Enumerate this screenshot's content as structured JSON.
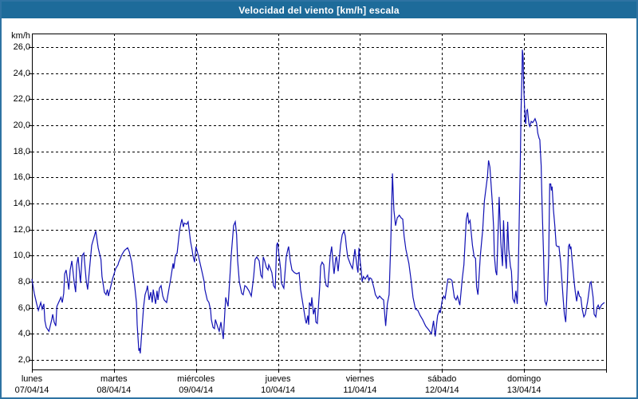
{
  "window": {
    "title": "Velocidad del viento [km/h] escala"
  },
  "colors": {
    "titlebar_bg": "#1d6b9a",
    "window_border": "#2e73a3",
    "line": "#1111b4",
    "grid": "#000000",
    "frame": "#000000",
    "plot_bg": "#ffffff",
    "label_text": "#000000"
  },
  "y_axis": {
    "unit_label": "km/h",
    "tick_labels": [
      "26,0",
      "24,0",
      "22,0",
      "20,0",
      "18,0",
      "16,0",
      "14,0",
      "12,0",
      "10,0",
      "8,0",
      "6,0",
      "4,0",
      "2,0"
    ]
  },
  "x_axis": {
    "days": [
      {
        "name": "lunes",
        "date": "07/04/14"
      },
      {
        "name": "martes",
        "date": "08/04/14"
      },
      {
        "name": "miércoles",
        "date": "09/04/14"
      },
      {
        "name": "jueves",
        "date": "10/04/14"
      },
      {
        "name": "viernes",
        "date": "11/04/14"
      },
      {
        "name": "sábado",
        "date": "12/04/14"
      },
      {
        "name": "domingo",
        "date": "13/04/14"
      }
    ]
  },
  "chart_data": {
    "type": "line",
    "title": "Velocidad del viento [km/h] escala",
    "ylabel": "km/h",
    "ylim": [
      2,
      26
    ],
    "y_ticks": [
      2,
      4,
      6,
      8,
      10,
      12,
      14,
      16,
      18,
      20,
      22,
      24,
      26
    ],
    "x_hours_total": 168,
    "grid": "dashed",
    "legend_position": "none",
    "categories": [
      "lunes 07/04/14",
      "martes 08/04/14",
      "miércoles 09/04/14",
      "jueves 10/04/14",
      "viernes 11/04/14",
      "sábado 12/04/14",
      "domingo 13/04/14"
    ],
    "series": [
      {
        "name": "Velocidad del viento [km/h]",
        "color": "#1111b4",
        "x_hours": [
          0,
          0.7,
          1.4,
          1.9,
          2.6,
          3,
          3.5,
          3.8,
          4.2,
          4.7,
          5,
          5.8,
          6.1,
          6.5,
          7,
          7.3,
          8.5,
          8.9,
          9.3,
          9.6,
          10,
          10.5,
          10.8,
          11.2,
          11.7,
          12.4,
          12.8,
          13.1,
          13.5,
          14.2,
          14.7,
          15.2,
          15.9,
          16.3,
          17.5,
          18.7,
          19.4,
          20.2,
          20.5,
          21.2,
          21.7,
          22.1,
          22.4,
          23.6,
          24.5,
          25.2,
          25.4,
          26.4,
          27.1,
          28,
          28.5,
          29.2,
          30.1,
          30.6,
          30.8,
          31.3,
          31.5,
          31.7,
          32.4,
          32.7,
          33.1,
          33.6,
          33.8,
          34.3,
          34.8,
          35.2,
          35.5,
          36.2,
          36.6,
          36.9,
          37.3,
          37.8,
          38.3,
          38.7,
          39.4,
          40.6,
          41.3,
          41.5,
          42,
          42.5,
          43.2,
          43.6,
          43.9,
          44.3,
          44.6,
          45.3,
          45.7,
          46.4,
          46.9,
          47.1,
          47.6,
          48,
          48.8,
          49.9,
          50.4,
          50.6,
          51.3,
          51.8,
          52.3,
          52.5,
          53,
          53.4,
          53.7,
          54.4,
          54.8,
          55.3,
          55.8,
          56,
          56.7,
          57.4,
          58.3,
          59,
          59.5,
          59.9,
          60.2,
          60.7,
          61.4,
          61.8,
          62.3,
          62.8,
          63.5,
          64.2,
          64.9,
          65.3,
          65.8,
          66.5,
          67,
          67.4,
          67.7,
          68.1,
          68.6,
          69.1,
          69.3,
          69.8,
          70.2,
          70.7,
          71.2,
          71.6,
          71.9,
          72.3,
          72.8,
          73,
          73.5,
          73.7,
          74.4,
          74.9,
          75.1,
          75.6,
          76.1,
          76.8,
          77.5,
          78.2,
          78.6,
          79.1,
          79.6,
          80,
          80.3,
          80.7,
          81,
          81.2,
          81.7,
          81.9,
          82.4,
          82.8,
          83.1,
          83.5,
          84.2,
          84.5,
          84.9,
          85.4,
          85.7,
          86.1,
          86.6,
          87.3,
          87.7,
          88.2,
          88.4,
          88.9,
          89.1,
          89.6,
          90.3,
          90.8,
          91.3,
          91.7,
          92,
          92.4,
          93.1,
          93.6,
          93.8,
          94.5,
          95.2,
          95.4,
          95.7,
          96.1,
          96.4,
          96.6,
          97,
          97.5,
          98.2,
          98.6,
          98.9,
          99.4,
          100.1,
          100.5,
          101.2,
          101.7,
          102.4,
          102.9,
          103.5,
          104,
          104.5,
          105,
          105.5,
          105.9,
          106.4,
          106.9,
          107.5,
          108,
          108.5,
          108.9,
          109.4,
          110.3,
          111,
          111.5,
          112.2,
          112.9,
          113.6,
          114.3,
          115.2,
          116.1,
          116.9,
          117.5,
          118,
          118.7,
          119.2,
          119.5,
          120,
          120.5,
          120.9,
          121.7,
          122.4,
          122.9,
          123.6,
          124.1,
          124.5,
          125.2,
          125.9,
          126.4,
          127.1,
          127.5,
          127.8,
          128.2,
          128.9,
          129.4,
          129.8,
          130.1,
          130.5,
          131.2,
          131.9,
          132.4,
          133.3,
          133.6,
          134,
          134.7,
          135.1,
          135.3,
          135.7,
          136,
          136.7,
          137.2,
          137.7,
          138,
          138.4,
          138.8,
          139.2,
          139.5,
          140,
          140.3,
          140.7,
          141.2,
          141.6,
          142,
          142.3,
          142.7,
          142.9,
          143.1,
          143.4,
          143.5,
          143.7,
          143.9,
          144.2,
          144.3,
          144.5,
          144.7,
          145,
          145.3,
          145.5,
          145.7,
          146.1,
          146.5,
          147,
          147.2,
          147.6,
          147.8,
          148,
          148.4,
          148.6,
          148.8,
          149,
          149.1,
          149.3,
          149.7,
          149.9,
          150.1,
          150.5,
          150.8,
          151.2,
          151.5,
          151.8,
          152,
          152.2,
          152.6,
          153,
          153.4,
          153.7,
          154.2,
          154.7,
          155.1,
          155.5,
          155.8,
          156.2,
          156.7,
          157,
          157.3,
          157.5,
          157.7,
          158.1,
          158.7,
          159,
          159.4,
          159.8,
          160.2,
          160.6,
          161,
          161.5,
          161.9,
          162.2,
          162.6,
          163.3,
          163.6,
          164.2,
          164.5,
          165,
          165.3,
          165.7,
          166.1,
          166.6,
          167,
          167.5
        ],
        "values": [
          8.2,
          7.1,
          6.3,
          5.8,
          6.4,
          5.9,
          6.3,
          5,
          4.5,
          4.3,
          4.2,
          5.1,
          5.5,
          4.9,
          4.6,
          6.1,
          6.8,
          6.4,
          7.1,
          8.6,
          8.9,
          8,
          7.4,
          8.9,
          9.6,
          7.9,
          7.2,
          9.3,
          9.9,
          7.9,
          10,
          10.2,
          8.1,
          7.4,
          10.8,
          11.9,
          10.6,
          9.7,
          8.4,
          7.2,
          7,
          7.4,
          6.9,
          8.2,
          9,
          9.3,
          9.5,
          10.1,
          10.4,
          10.6,
          10.3,
          9.5,
          7.6,
          6.4,
          4.7,
          2.7,
          2.9,
          2.5,
          5.1,
          6.1,
          7,
          7.4,
          7.7,
          6.6,
          7.2,
          6.4,
          7.4,
          6.3,
          7.3,
          6.6,
          7.5,
          7.7,
          6.9,
          6.6,
          6.4,
          8.2,
          9.4,
          9,
          10,
          10.2,
          11.9,
          12.5,
          12.8,
          12.2,
          12.5,
          12.4,
          12.6,
          11.1,
          10.4,
          10,
          9.5,
          10.7,
          9.9,
          8.6,
          8,
          7.4,
          6.6,
          6.4,
          5.8,
          5.1,
          4.5,
          4.4,
          5.1,
          4.5,
          4.2,
          4.9,
          4,
          3.6,
          6.8,
          6.1,
          10,
          12.3,
          12.6,
          11.6,
          9.6,
          8,
          7.1,
          7,
          7.7,
          7.6,
          7.3,
          6.9,
          8.4,
          9.7,
          9.9,
          9.6,
          8.5,
          8.3,
          9.9,
          9.6,
          9.1,
          8.9,
          9.3,
          9,
          8.7,
          7.7,
          7.5,
          10.8,
          11,
          10,
          8.9,
          7.9,
          7.6,
          7.5,
          9.9,
          10.5,
          10.7,
          9.6,
          8.9,
          8.7,
          8.6,
          8.7,
          7.4,
          6.6,
          5.8,
          5.1,
          4.8,
          5.4,
          4.7,
          6.4,
          6.1,
          6.8,
          5.5,
          6,
          4.9,
          4.8,
          7.6,
          9.2,
          9.5,
          9.3,
          8.3,
          7.7,
          7.6,
          10,
          10.7,
          9.1,
          8.6,
          9.8,
          9.9,
          8.8,
          10.8,
          11.6,
          11.9,
          11.5,
          10.7,
          9.9,
          9.4,
          9.1,
          9,
          10.5,
          9,
          8.7,
          10.6,
          9.4,
          8.8,
          8,
          8.4,
          8.2,
          8.5,
          8.1,
          8.3,
          8.2,
          7.5,
          7,
          6.7,
          6.9,
          6.7,
          6.6,
          4.6,
          6.3,
          7,
          11,
          16.3,
          13.5,
          12.3,
          12.9,
          13.1,
          12.9,
          12.8,
          11.5,
          10.5,
          9.4,
          8,
          6.8,
          5.9,
          5.8,
          5.4,
          5.1,
          4.6,
          4.3,
          4,
          5,
          3.8,
          5.4,
          5.8,
          5.6,
          6.5,
          6.9,
          6.7,
          8.2,
          8.2,
          8.1,
          6.8,
          6.6,
          6.9,
          6.2,
          8.2,
          9.3,
          12.8,
          13.3,
          12.5,
          12.7,
          10.8,
          9.9,
          9.8,
          7.6,
          7,
          10,
          12,
          14.2,
          16.1,
          17.3,
          16.8,
          14.1,
          12.1,
          10,
          8.8,
          8.5,
          14.5,
          11,
          9.2,
          12.7,
          10.2,
          9,
          12.6,
          10.5,
          9.2,
          8.8,
          6.7,
          6.4,
          7.3,
          6.3,
          8.9,
          14.5,
          17,
          21,
          24.1,
          25.8,
          25.3,
          23,
          21.1,
          20.4,
          20.1,
          21.1,
          21.2,
          20.4,
          20,
          19.9,
          20.3,
          20.2,
          20.4,
          20.5,
          20.2,
          19.9,
          19.4,
          19,
          18.9,
          17.9,
          16.9,
          15.7,
          13.5,
          10,
          7.9,
          6.5,
          6.2,
          6.6,
          9.8,
          15.5,
          15.5,
          15,
          15.3,
          13.5,
          12.3,
          10.8,
          10.7,
          10.7,
          9.5,
          8,
          6.5,
          5.5,
          4.9,
          8.2,
          10.7,
          10.9,
          10.5,
          10.7,
          9.5,
          7.9,
          7.2,
          6.5,
          7.3,
          6.9,
          6.8,
          5.9,
          5.3,
          5.5,
          5.9,
          6.5,
          7.9,
          8,
          6.8,
          5.5,
          5.3,
          6,
          6.2,
          5.9,
          6.2,
          6.3,
          6.4
        ]
      }
    ]
  }
}
